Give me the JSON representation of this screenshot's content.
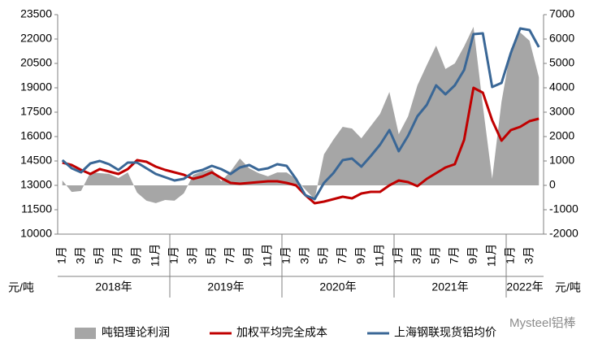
{
  "chart_data": {
    "type": "line",
    "categories": [
      "1月",
      null,
      "3月",
      null,
      "5月",
      null,
      "7月",
      null,
      "9月",
      null,
      "11月",
      null,
      "1月",
      null,
      "3月",
      null,
      "5月",
      null,
      "7月",
      null,
      "9月",
      null,
      "11月",
      null,
      "1月",
      null,
      "3月",
      null,
      "5月",
      null,
      "7月",
      null,
      "9月",
      null,
      "11月",
      null,
      "1月",
      null,
      "3月",
      null,
      "5月",
      null,
      "7月",
      null,
      "9月",
      null,
      "11月",
      null,
      "1月",
      null,
      "3月",
      null
    ],
    "years": [
      "2018年",
      "2019年",
      "2020年",
      "2021年",
      "2022年"
    ],
    "ylabel": "元/吨",
    "y2label": "元/吨",
    "ylim": [
      10000,
      23500
    ],
    "yticks": [
      10000,
      11500,
      13000,
      14500,
      16000,
      17500,
      19000,
      20500,
      22000,
      23500
    ],
    "y2lim": [
      -2000,
      7000
    ],
    "y2ticks": [
      -2000,
      -1000,
      0,
      1000,
      2000,
      3000,
      4000,
      5000,
      6000,
      7000
    ],
    "series": [
      {
        "name": "吨铝理论利润",
        "type": "area",
        "axis": "y2",
        "color": "#a6a6a6",
        "values": [
          200,
          -270,
          -230,
          530,
          500,
          470,
          300,
          530,
          -300,
          -630,
          -730,
          -600,
          -630,
          -330,
          430,
          570,
          670,
          170,
          570,
          1100,
          700,
          500,
          370,
          530,
          530,
          270,
          -170,
          -570,
          1270,
          1870,
          2400,
          2330,
          1930,
          2430,
          2930,
          3830,
          2100,
          2830,
          4100,
          4930,
          5730,
          4770,
          5000,
          5700,
          6500,
          3270,
          270,
          3430,
          5600,
          6270,
          5930,
          4430
        ]
      },
      {
        "name": "加权平均完全成本",
        "type": "line",
        "color": "#c00000",
        "values": [
          14400,
          14250,
          13950,
          13700,
          14000,
          13850,
          13700,
          14000,
          14550,
          14450,
          14150,
          13950,
          13800,
          13650,
          13400,
          13550,
          13800,
          13450,
          13150,
          13100,
          13150,
          13200,
          13250,
          13250,
          13150,
          13000,
          12400,
          11900,
          12000,
          12150,
          12300,
          12200,
          12500,
          12600,
          12600,
          13000,
          13300,
          13200,
          12950,
          13400,
          13750,
          14100,
          14300,
          15800,
          19000,
          18700,
          17000,
          15750,
          16400,
          16600,
          16950,
          17100
        ]
      },
      {
        "name": "上海钢联现货铝均价",
        "type": "line",
        "color": "#3a6796",
        "values": [
          14550,
          14050,
          13800,
          14350,
          14500,
          14300,
          13950,
          14400,
          14400,
          14050,
          13700,
          13500,
          13300,
          13400,
          13800,
          13950,
          14200,
          14000,
          13700,
          14100,
          14250,
          13950,
          14050,
          14300,
          14200,
          13400,
          12400,
          12150,
          13150,
          13750,
          14550,
          14650,
          14150,
          14800,
          15500,
          16400,
          15100,
          16050,
          17250,
          17950,
          19150,
          18600,
          19150,
          20100,
          22300,
          22350,
          19050,
          19300,
          21150,
          22650,
          22550,
          21500
        ]
      }
    ],
    "watermark": "Mysteel铝棒"
  }
}
